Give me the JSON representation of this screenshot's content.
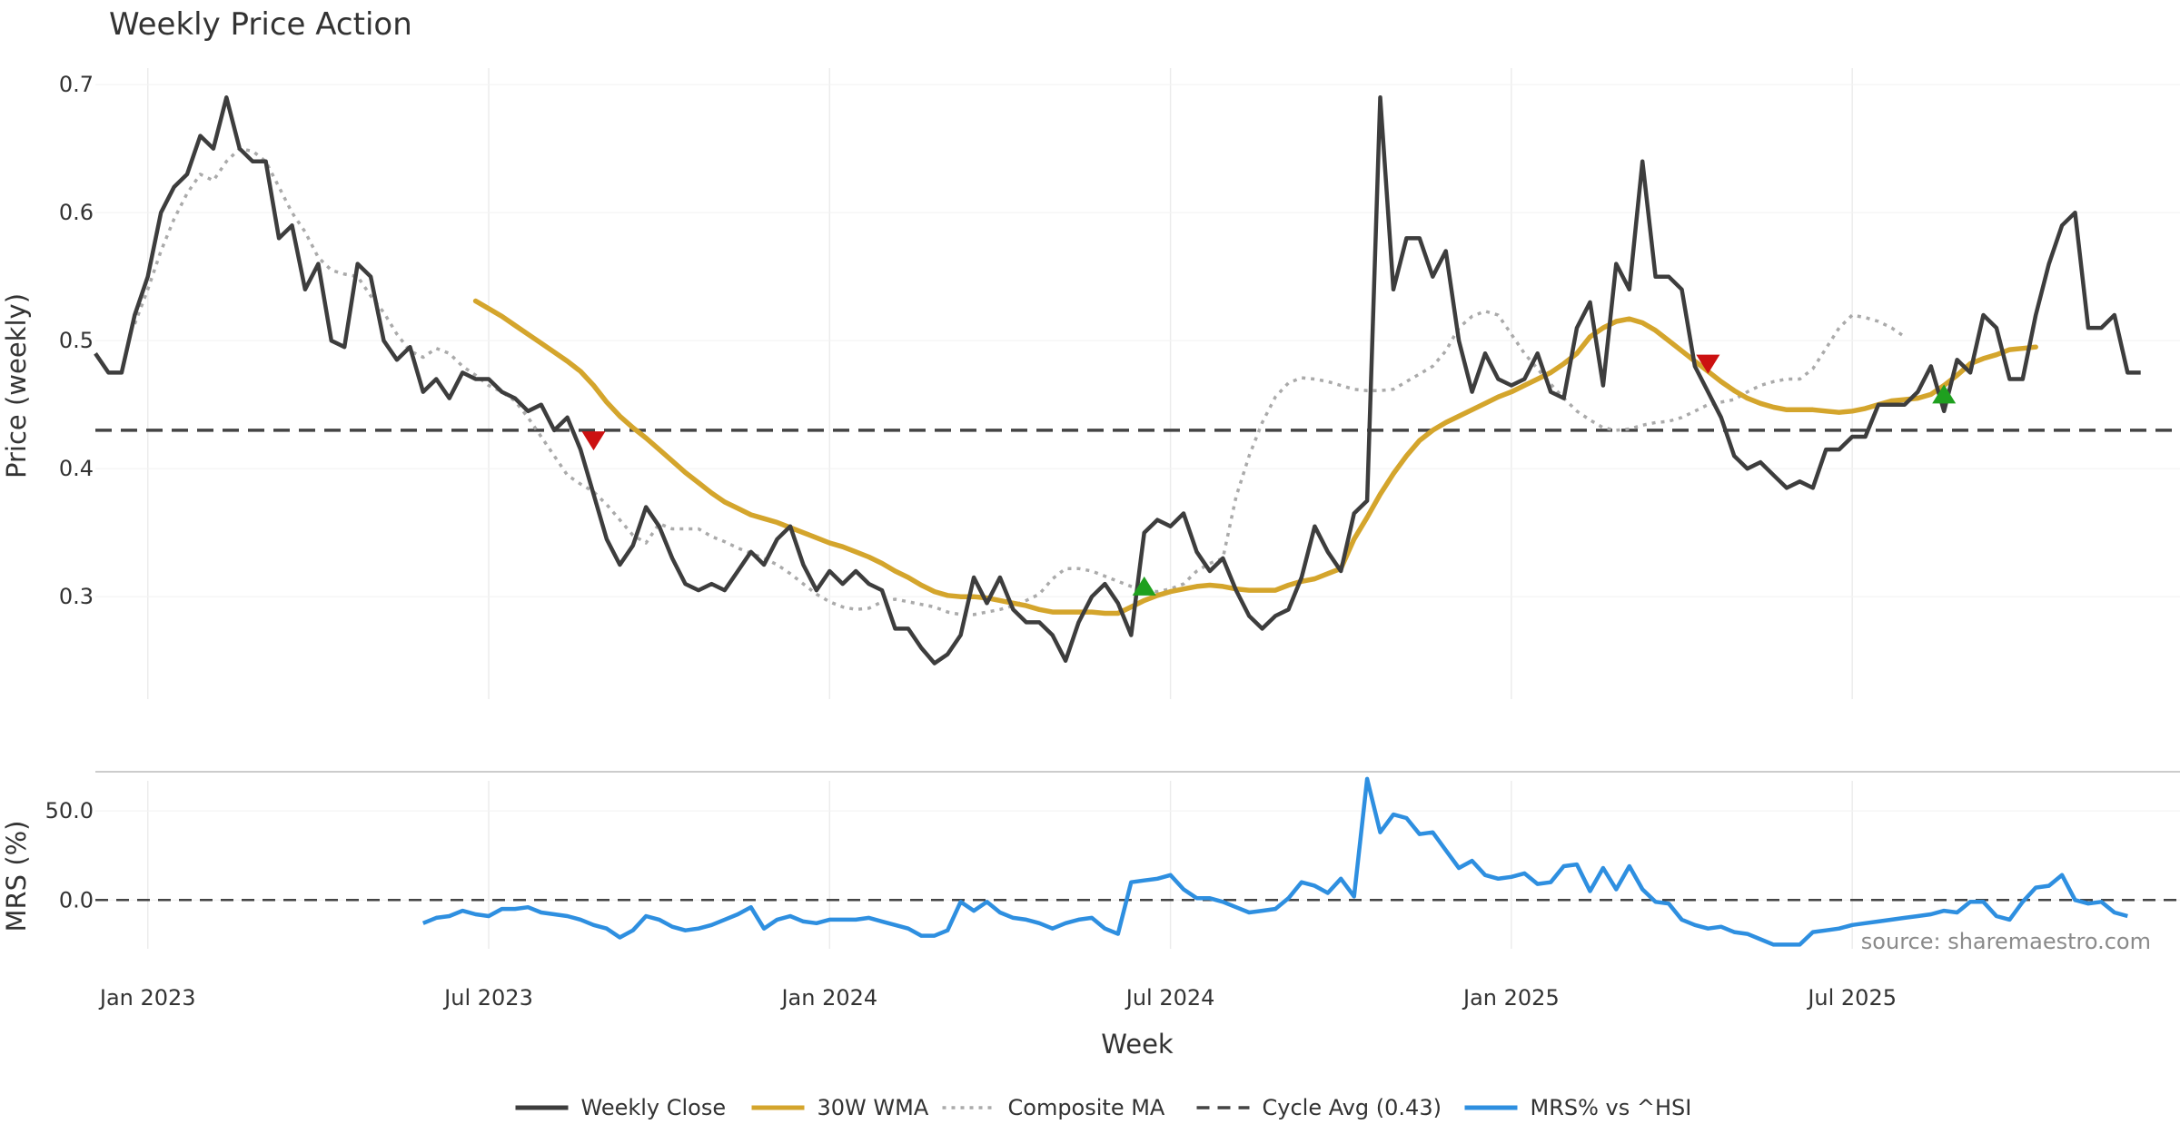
{
  "chart_data": {
    "type": "line",
    "title": "Weekly Price Action",
    "xlabel": "Week",
    "source": "source: sharemaestro.com",
    "x_ticks": [
      "Jan 2023",
      "Jul 2023",
      "Jan 2024",
      "Jul 2024",
      "Jan 2025",
      "Jul 2025"
    ],
    "x_tick_index": [
      4,
      30,
      56,
      82,
      108,
      134
    ],
    "price_panel": {
      "ylabel": "Price (weekly)",
      "ylim": [
        0.22,
        0.72
      ],
      "y_ticks": [
        0.3,
        0.4,
        0.5,
        0.6,
        0.7
      ],
      "y_tick_labels": [
        "0.3",
        "0.4",
        "0.5",
        "0.6",
        "0.7"
      ],
      "cycle_avg": 0.43,
      "weekly_close": [
        0.49,
        0.475,
        0.475,
        0.52,
        0.55,
        0.6,
        0.62,
        0.63,
        0.66,
        0.65,
        0.69,
        0.65,
        0.64,
        0.64,
        0.58,
        0.59,
        0.54,
        0.56,
        0.5,
        0.495,
        0.56,
        0.55,
        0.5,
        0.485,
        0.495,
        0.46,
        0.47,
        0.455,
        0.475,
        0.47,
        0.47,
        0.46,
        0.455,
        0.445,
        0.45,
        0.43,
        0.44,
        0.415,
        0.38,
        0.345,
        0.325,
        0.34,
        0.37,
        0.355,
        0.33,
        0.31,
        0.305,
        0.31,
        0.305,
        0.32,
        0.335,
        0.325,
        0.345,
        0.355,
        0.325,
        0.305,
        0.32,
        0.31,
        0.32,
        0.31,
        0.305,
        0.275,
        0.275,
        0.26,
        0.248,
        0.255,
        0.27,
        0.315,
        0.295,
        0.315,
        0.29,
        0.28,
        0.28,
        0.27,
        0.25,
        0.28,
        0.3,
        0.31,
        0.295,
        0.27,
        0.35,
        0.36,
        0.355,
        0.365,
        0.335,
        0.32,
        0.33,
        0.305,
        0.285,
        0.275,
        0.285,
        0.29,
        0.315,
        0.355,
        0.335,
        0.32,
        0.365,
        0.375,
        0.69,
        0.54,
        0.58,
        0.58,
        0.55,
        0.57,
        0.5,
        0.46,
        0.49,
        0.47,
        0.465,
        0.47,
        0.49,
        0.46,
        0.455,
        0.51,
        0.53,
        0.465,
        0.56,
        0.54,
        0.64,
        0.55,
        0.55,
        0.54,
        0.48,
        0.46,
        0.44,
        0.41,
        0.4,
        0.405,
        0.395,
        0.385,
        0.39,
        0.385,
        0.415,
        0.415,
        0.425,
        0.425,
        0.45,
        0.45,
        0.45,
        0.46,
        0.48,
        0.445,
        0.485,
        0.475,
        0.52,
        0.51,
        0.47,
        0.47,
        0.52,
        0.56,
        0.59,
        0.6,
        0.51,
        0.51,
        0.52,
        0.475,
        0.475
      ],
      "wma_30w": {
        "start_index": 29,
        "values": [
          0.531,
          0.525,
          0.519,
          0.512,
          0.505,
          0.498,
          0.491,
          0.484,
          0.476,
          0.465,
          0.452,
          0.441,
          0.432,
          0.424,
          0.415,
          0.406,
          0.397,
          0.389,
          0.381,
          0.374,
          0.369,
          0.364,
          0.361,
          0.358,
          0.354,
          0.35,
          0.346,
          0.342,
          0.339,
          0.335,
          0.331,
          0.326,
          0.32,
          0.315,
          0.309,
          0.304,
          0.301,
          0.3,
          0.3,
          0.299,
          0.297,
          0.295,
          0.293,
          0.29,
          0.288,
          0.288,
          0.288,
          0.288,
          0.287,
          0.287,
          0.292,
          0.297,
          0.301,
          0.304,
          0.306,
          0.308,
          0.309,
          0.308,
          0.306,
          0.305,
          0.305,
          0.305,
          0.309,
          0.312,
          0.314,
          0.318,
          0.322,
          0.345,
          0.362,
          0.38,
          0.396,
          0.41,
          0.422,
          0.43,
          0.436,
          0.441,
          0.446,
          0.451,
          0.456,
          0.46,
          0.465,
          0.47,
          0.475,
          0.482,
          0.49,
          0.503,
          0.51,
          0.515,
          0.517,
          0.514,
          0.508,
          0.5,
          0.492,
          0.484,
          0.476,
          0.468,
          0.461,
          0.455,
          0.451,
          0.448,
          0.446,
          0.446,
          0.446,
          0.445,
          0.444,
          0.445,
          0.447,
          0.45,
          0.453,
          0.454,
          0.455,
          0.458,
          0.465,
          0.473,
          0.482,
          0.486,
          0.489,
          0.493,
          0.494,
          0.495
        ]
      },
      "composite_ma": {
        "start_index": 3,
        "values": [
          0.513,
          0.54,
          0.57,
          0.595,
          0.615,
          0.63,
          0.625,
          0.64,
          0.65,
          0.648,
          0.64,
          0.62,
          0.6,
          0.585,
          0.565,
          0.555,
          0.552,
          0.55,
          0.535,
          0.522,
          0.505,
          0.492,
          0.487,
          0.494,
          0.49,
          0.48,
          0.473,
          0.465,
          0.46,
          0.453,
          0.44,
          0.425,
          0.41,
          0.395,
          0.388,
          0.382,
          0.372,
          0.36,
          0.348,
          0.342,
          0.357,
          0.353,
          0.353,
          0.353,
          0.347,
          0.343,
          0.338,
          0.334,
          0.33,
          0.325,
          0.318,
          0.31,
          0.302,
          0.296,
          0.292,
          0.29,
          0.291,
          0.296,
          0.298,
          0.296,
          0.294,
          0.292,
          0.288,
          0.286,
          0.286,
          0.288,
          0.29,
          0.293,
          0.297,
          0.302,
          0.314,
          0.322,
          0.322,
          0.32,
          0.316,
          0.312,
          0.308,
          0.305,
          0.304,
          0.306,
          0.31,
          0.32,
          0.326,
          0.33,
          0.378,
          0.41,
          0.436,
          0.456,
          0.467,
          0.471,
          0.47,
          0.468,
          0.465,
          0.462,
          0.461,
          0.461,
          0.462,
          0.468,
          0.474,
          0.48,
          0.492,
          0.51,
          0.519,
          0.523,
          0.52,
          0.505,
          0.49,
          0.478,
          0.466,
          0.455,
          0.445,
          0.438,
          0.432,
          0.43,
          0.431,
          0.434,
          0.436,
          0.437,
          0.44,
          0.445,
          0.45,
          0.452,
          0.454,
          0.46,
          0.465,
          0.468,
          0.47,
          0.47,
          0.478,
          0.494,
          0.51,
          0.52,
          0.518,
          0.515,
          0.51,
          0.503
        ]
      },
      "signals": [
        {
          "type": "sell",
          "index": 38,
          "value": 0.422
        },
        {
          "type": "buy",
          "index": 80,
          "value": 0.308
        },
        {
          "type": "sell",
          "index": 123,
          "value": 0.482
        },
        {
          "type": "buy",
          "index": 141,
          "value": 0.458
        }
      ]
    },
    "mrs_panel": {
      "ylabel": "MRS (%)",
      "ylim": [
        -35,
        72
      ],
      "y_ticks": [
        0,
        50
      ],
      "y_tick_labels": [
        "0.0",
        "50.0"
      ],
      "zero_line": 0,
      "mrs": {
        "start_index": 25,
        "values": [
          -13,
          -10,
          -9,
          -6,
          -8,
          -9,
          -5,
          -5,
          -4,
          -7,
          -8,
          -9,
          -11,
          -14,
          -16,
          -21,
          -17,
          -9,
          -11,
          -15,
          -17,
          -16,
          -14,
          -11,
          -8,
          -4,
          -16,
          -11,
          -9,
          -12,
          -13,
          -11,
          -11,
          -11,
          -10,
          -12,
          -14,
          -16,
          -20,
          -20,
          -17,
          -1,
          -6,
          -1,
          -7,
          -10,
          -11,
          -13,
          -16,
          -13,
          -11,
          -10,
          -16,
          -19,
          10,
          11,
          12,
          14,
          6,
          1,
          1,
          -1,
          -4,
          -7,
          -6,
          -5,
          1,
          10,
          8,
          4,
          12,
          2,
          68,
          38,
          48,
          46,
          37,
          38,
          28,
          18,
          22,
          14,
          12,
          13,
          15,
          9,
          10,
          19,
          20,
          5,
          18,
          6,
          19,
          6,
          -1,
          -2,
          -11,
          -14,
          -16,
          -15,
          -18,
          -19,
          -22,
          -25,
          -25,
          -25,
          -18,
          -17,
          -16,
          -14,
          -13,
          -12,
          -11,
          -10,
          -9,
          -8,
          -6,
          -7,
          -1,
          -1,
          -9,
          -11,
          -1,
          7,
          8,
          14,
          0,
          -2,
          -1,
          -7,
          -9
        ]
      }
    },
    "legend": [
      {
        "label": "Weekly Close",
        "style": "solid",
        "color": "#3d3d3d"
      },
      {
        "label": "30W WMA",
        "style": "solid",
        "color": "#d4a52c"
      },
      {
        "label": "Composite MA",
        "style": "dotted",
        "color": "#aaaaaa"
      },
      {
        "label": "Cycle Avg (0.43)",
        "style": "dashed",
        "color": "#444444"
      },
      {
        "label": "MRS% vs ^HSI",
        "style": "solid",
        "color": "#2e8fe0"
      }
    ],
    "colors": {
      "close": "#3d3d3d",
      "wma": "#d4a52c",
      "composite": "#aaaaaa",
      "cycle_avg": "#444444",
      "mrs": "#2e8fe0",
      "buy": "#1fa01f",
      "sell": "#cc1111",
      "grid": "#ececec"
    }
  }
}
